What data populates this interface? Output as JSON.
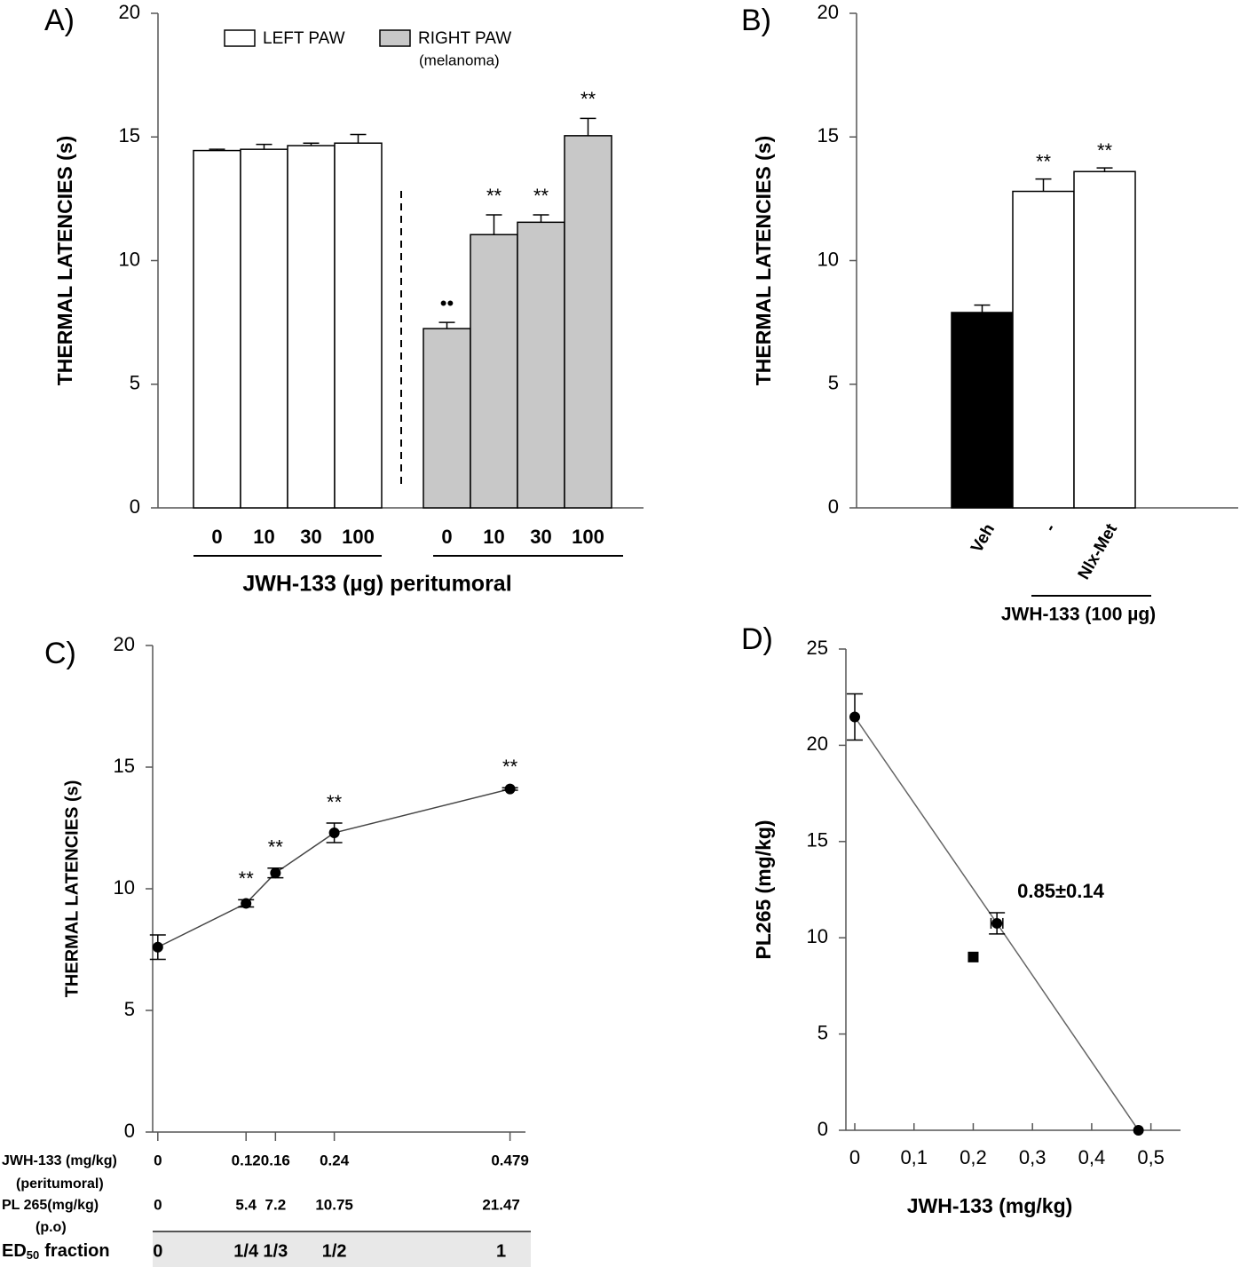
{
  "chart_data": [
    {
      "type": "bar",
      "panel_label": "A)",
      "ylabel": "THERMAL LATENCIES (s)",
      "xlabel": "JWH-133 (µg) peritumoral",
      "categories": [
        "0",
        "10",
        "30",
        "100",
        "0",
        "10",
        "30",
        "100"
      ],
      "series": [
        {
          "name": "LEFT PAW",
          "color": "#ffffff",
          "values": [
            14.45,
            14.5,
            14.65,
            14.75,
            null,
            null,
            null,
            null
          ],
          "errors": [
            0.05,
            0.2,
            0.1,
            0.35,
            null,
            null,
            null,
            null
          ],
          "annotations": [
            null,
            null,
            null,
            null,
            null,
            null,
            null,
            null
          ]
        },
        {
          "name": "RIGHT PAW",
          "legend_note": "(melanoma)",
          "color": "#c8c8c8",
          "values": [
            null,
            null,
            null,
            null,
            7.25,
            11.05,
            11.55,
            15.05
          ],
          "errors": [
            null,
            null,
            null,
            null,
            0.25,
            0.8,
            0.3,
            0.7
          ],
          "annotations": [
            null,
            null,
            null,
            null,
            "••",
            "**",
            "**",
            "**"
          ]
        }
      ],
      "ylim": [
        0,
        20
      ],
      "yticks": [
        0,
        5,
        10,
        15,
        20
      ]
    },
    {
      "type": "bar",
      "panel_label": "B)",
      "ylabel": "THERMAL LATENCIES (s)",
      "group_label": "JWH-133 (100 µg)",
      "categories": [
        "Veh",
        "-",
        "Nlx-Met"
      ],
      "values": [
        7.9,
        12.8,
        13.6
      ],
      "errors": [
        0.3,
        0.5,
        0.15
      ],
      "colors": [
        "#000000",
        "#ffffff",
        "#ffffff"
      ],
      "annotations": [
        null,
        "**",
        "**"
      ],
      "ylim": [
        0,
        20
      ],
      "yticks": [
        0,
        5,
        10,
        15,
        20
      ]
    },
    {
      "type": "line",
      "panel_label": "C)",
      "ylabel": "THERMAL LATENCIES (s)",
      "x": [
        0,
        0.12,
        0.16,
        0.24,
        0.479
      ],
      "values": [
        7.6,
        9.4,
        10.65,
        12.3,
        14.1
      ],
      "errors": [
        0.5,
        0.15,
        0.2,
        0.4,
        0.05
      ],
      "annotations": [
        null,
        "**",
        "**",
        "**",
        "**"
      ],
      "color": "#000000",
      "xlim": [
        -0.007,
        0.5
      ],
      "xticks": [
        0,
        0.12,
        0.16,
        0.24,
        0.479
      ],
      "xtick_title": "JWH-133 (mg/kg)",
      "xtick_subtitle": "(peritumoral)",
      "ylim": [
        0,
        20
      ],
      "yticks": [
        0,
        5,
        10,
        15,
        20
      ],
      "table": [
        {
          "label": "PL 265(mg/kg)",
          "sublabel": "(p.o)",
          "cells": [
            0,
            5.4,
            7.2,
            10.75,
            21.47
          ]
        },
        {
          "label": "ED",
          "label_sub": "50",
          "label_rest": "fraction",
          "cells": [
            "0",
            "1/4",
            "1/3",
            "1/2",
            "1"
          ]
        }
      ]
    },
    {
      "type": "scatter",
      "panel_label": "D)",
      "xlabel": "JWH-133 (mg/kg)",
      "ylabel": "PL265 (mg/kg)",
      "annotation": "0.85±0.14",
      "line_color": "#666666",
      "series": [
        {
          "marker": "circle",
          "color": "#000000",
          "line": true,
          "x": [
            0,
            0.24,
            0.479
          ],
          "values": [
            21.47,
            10.75,
            0
          ],
          "errors": [
            1.2,
            0.55,
            null
          ],
          "x_errors": [
            null,
            0.01,
            null
          ]
        },
        {
          "marker": "square",
          "color": "#000000",
          "line": false,
          "x": [
            0.2
          ],
          "values": [
            9
          ]
        }
      ],
      "xlim": [
        -0.015,
        0.55
      ],
      "xticks": [
        0,
        {
          "value": 0.1,
          "label": "0,1"
        },
        {
          "value": 0.2,
          "label": "0,2"
        },
        {
          "value": 0.3,
          "label": "0,3"
        },
        {
          "value": 0.4,
          "label": "0,4"
        },
        {
          "value": 0.5,
          "label": "0,5"
        }
      ],
      "ylim": [
        0,
        25
      ],
      "yticks": [
        0,
        5,
        10,
        15,
        20,
        25
      ]
    }
  ]
}
